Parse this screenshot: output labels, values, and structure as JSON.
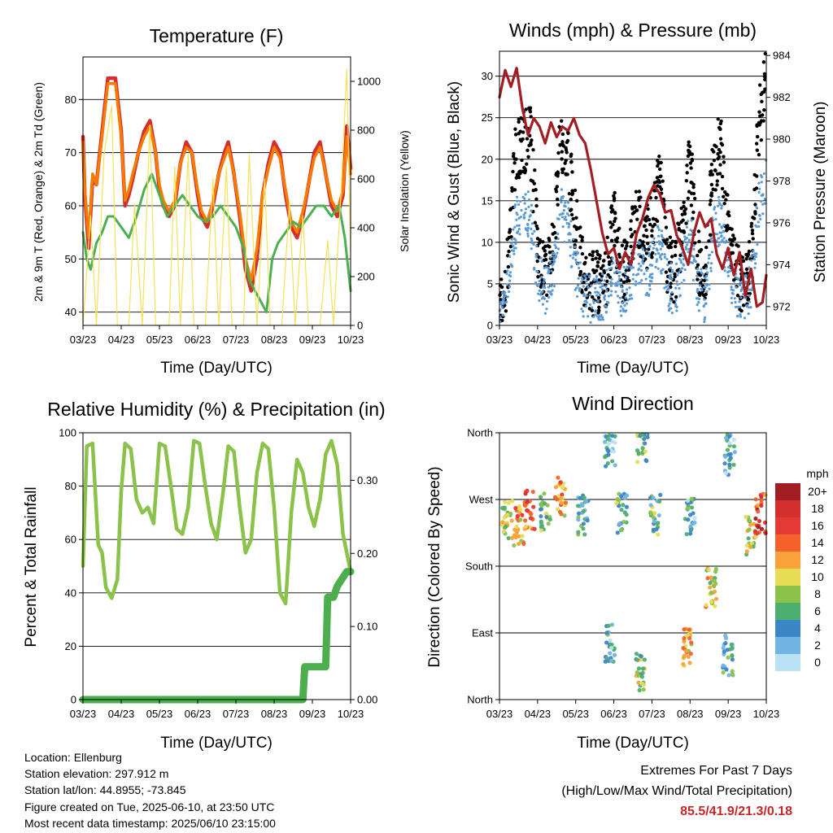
{
  "chart_data": [
    {
      "id": "temperature",
      "type": "line",
      "title": "Temperature (F)",
      "xlabel": "Time (Day/UTC)",
      "ylabel": "2m & 9m T (Red, Orange) & 2m Td (Green)",
      "ylabel_right": "Solar Insolation (Yellow)",
      "x_ticks": [
        "03/23",
        "04/23",
        "05/23",
        "06/23",
        "07/23",
        "08/23",
        "09/23",
        "10/23"
      ],
      "y_ticks": [
        40,
        50,
        60,
        70,
        80
      ],
      "y2_ticks": [
        0,
        200,
        400,
        600,
        800,
        1000
      ],
      "xlim": [
        0,
        7
      ],
      "ylim": [
        37.5,
        88
      ],
      "y2lim": [
        0,
        1100
      ],
      "grid": "horizontal",
      "series": [
        {
          "role": "t2m",
          "color": "#d32f2f",
          "axis": "left",
          "x": [
            0,
            0.05,
            0.15,
            0.25,
            0.35,
            0.5,
            0.65,
            0.85,
            1.0,
            1.1,
            1.2,
            1.3,
            1.45,
            1.6,
            1.75,
            1.9,
            2.0,
            2.1,
            2.25,
            2.4,
            2.55,
            2.7,
            2.85,
            3.0,
            3.1,
            3.25,
            3.4,
            3.55,
            3.7,
            3.8,
            3.95,
            4.1,
            4.25,
            4.4,
            4.55,
            4.7,
            4.85,
            5.0,
            5.15,
            5.3,
            5.45,
            5.6,
            5.75,
            5.9,
            6.05,
            6.2,
            6.35,
            6.5,
            6.65,
            6.8,
            6.9,
            7.0
          ],
          "values": [
            73,
            62,
            52,
            65,
            64,
            74,
            84,
            84,
            74,
            60,
            62,
            65,
            70,
            74,
            76,
            70,
            63,
            60,
            58,
            60,
            68,
            72,
            70,
            62,
            58,
            56,
            60,
            66,
            70,
            72,
            66,
            58,
            48,
            44,
            50,
            62,
            68,
            72,
            70,
            62,
            56,
            54,
            58,
            64,
            70,
            72,
            66,
            60,
            58,
            62,
            75,
            67
          ]
        },
        {
          "role": "t9m",
          "color": "#f57c00",
          "axis": "left",
          "x": [
            0,
            0.05,
            0.15,
            0.25,
            0.35,
            0.5,
            0.65,
            0.85,
            1.0,
            1.1,
            1.2,
            1.3,
            1.45,
            1.6,
            1.75,
            1.9,
            2.0,
            2.1,
            2.25,
            2.4,
            2.55,
            2.7,
            2.85,
            3.0,
            3.1,
            3.25,
            3.4,
            3.55,
            3.7,
            3.8,
            3.95,
            4.1,
            4.25,
            4.4,
            4.55,
            4.7,
            4.85,
            5.0,
            5.15,
            5.3,
            5.45,
            5.6,
            5.75,
            5.9,
            6.05,
            6.2,
            6.35,
            6.5,
            6.65,
            6.8,
            6.9,
            7.0
          ],
          "values": [
            72,
            63,
            54,
            66,
            64,
            73,
            83,
            83,
            73,
            61,
            63,
            66,
            70,
            73,
            75,
            70,
            64,
            61,
            59,
            61,
            68,
            71,
            70,
            63,
            59,
            57,
            61,
            66,
            69,
            71,
            66,
            59,
            50,
            46,
            52,
            62,
            67,
            71,
            69,
            63,
            57,
            55,
            59,
            64,
            69,
            71,
            66,
            61,
            59,
            63,
            73,
            66
          ]
        },
        {
          "role": "td2m",
          "color": "#4caf50",
          "axis": "left",
          "x": [
            0,
            0.1,
            0.2,
            0.35,
            0.5,
            0.65,
            0.8,
            1.0,
            1.2,
            1.4,
            1.6,
            1.8,
            2.0,
            2.2,
            2.4,
            2.6,
            2.8,
            3.0,
            3.2,
            3.4,
            3.6,
            3.8,
            4.0,
            4.2,
            4.35,
            4.5,
            4.65,
            4.8,
            4.95,
            5.1,
            5.3,
            5.5,
            5.7,
            5.9,
            6.1,
            6.3,
            6.5,
            6.7,
            6.85,
            7.0
          ],
          "values": [
            55,
            50,
            48,
            53,
            55,
            58,
            58,
            56,
            54,
            58,
            63,
            66,
            62,
            58,
            60,
            62,
            60,
            58,
            57,
            58,
            60,
            58,
            56,
            52,
            46,
            44,
            42,
            40,
            50,
            53,
            55,
            57,
            56,
            58,
            60,
            60,
            58,
            60,
            54,
            44
          ]
        },
        {
          "role": "solar",
          "color": "#f5e15a",
          "axis": "right",
          "x": [
            0,
            0.2,
            0.35,
            0.55,
            0.75,
            0.9,
            1.2,
            1.35,
            1.55,
            1.75,
            1.9,
            2.25,
            2.4,
            2.55,
            2.75,
            2.9,
            3.2,
            3.4,
            3.55,
            3.75,
            3.9,
            4.2,
            4.35,
            4.55,
            4.75,
            4.9,
            5.2,
            5.4,
            5.55,
            5.75,
            5.9,
            6.2,
            6.4,
            6.55,
            6.75,
            6.9,
            7.0
          ],
          "values": [
            0,
            450,
            0,
            700,
            900,
            0,
            0,
            500,
            0,
            820,
            0,
            0,
            650,
            0,
            700,
            0,
            0,
            600,
            0,
            650,
            0,
            0,
            700,
            0,
            600,
            0,
            0,
            500,
            0,
            450,
            0,
            0,
            350,
            0,
            550,
            1050,
            300
          ]
        }
      ]
    },
    {
      "id": "winds",
      "type": "scatter",
      "title": "Winds (mph) & Pressure (mb)",
      "xlabel": "Time (Day/UTC)",
      "ylabel": "Sonic Wind & Gust (Blue, Black)",
      "ylabel_right": "Station Pressure (Maroon)",
      "x_ticks": [
        "03/23",
        "04/23",
        "05/23",
        "06/23",
        "07/23",
        "08/23",
        "09/23",
        "10/23"
      ],
      "y_ticks": [
        0,
        5,
        10,
        15,
        20,
        25,
        30
      ],
      "y2_ticks": [
        972,
        974,
        976,
        978,
        980,
        982,
        984
      ],
      "xlim": [
        0,
        7
      ],
      "ylim": [
        0,
        33
      ],
      "y2lim": [
        971.1,
        984.2
      ],
      "grid": "horizontal",
      "series": [
        {
          "role": "gust",
          "color": "#000000",
          "axis": "left",
          "x": [
            0,
            0.2,
            0.4,
            0.6,
            0.8,
            1.0,
            1.2,
            1.4,
            1.6,
            1.8,
            2.0,
            2.2,
            2.4,
            2.6,
            2.8,
            3.0,
            3.2,
            3.4,
            3.6,
            3.8,
            4.0,
            4.2,
            4.4,
            4.6,
            4.8,
            5.0,
            5.2,
            5.4,
            5.6,
            5.8,
            6.0,
            6.2,
            6.4,
            6.6,
            6.8,
            7.0
          ],
          "values": [
            2,
            6,
            20,
            22,
            23,
            10,
            6,
            9,
            22,
            20,
            12,
            6,
            5,
            5,
            6,
            13,
            6,
            8,
            14,
            10,
            12,
            18,
            8,
            6,
            12,
            20,
            8,
            6,
            19,
            22,
            12,
            6,
            5,
            8,
            24,
            30
          ]
        },
        {
          "role": "wind",
          "color": "#5b9bd5",
          "axis": "left",
          "x": [
            0,
            0.2,
            0.4,
            0.6,
            0.8,
            1.0,
            1.2,
            1.4,
            1.6,
            1.8,
            2.0,
            2.2,
            2.4,
            2.6,
            2.8,
            3.0,
            3.2,
            3.4,
            3.6,
            3.8,
            4.0,
            4.2,
            4.4,
            4.6,
            4.8,
            5.0,
            5.2,
            5.4,
            5.6,
            5.8,
            6.0,
            6.2,
            6.4,
            6.6,
            6.8,
            7.0
          ],
          "values": [
            1,
            4,
            12,
            14,
            13,
            6,
            4,
            6,
            14,
            12,
            7,
            4,
            3,
            3,
            4,
            8,
            4,
            5,
            8,
            6,
            7,
            10,
            5,
            4,
            7,
            11,
            5,
            3,
            11,
            13,
            7,
            4,
            3,
            5,
            14,
            18
          ]
        },
        {
          "role": "pressure",
          "color": "#a31e22",
          "axis": "right",
          "x": [
            0,
            0.15,
            0.3,
            0.45,
            0.6,
            0.75,
            0.9,
            1.05,
            1.2,
            1.35,
            1.5,
            1.65,
            1.8,
            1.95,
            2.1,
            2.25,
            2.4,
            2.55,
            2.7,
            2.85,
            3.0,
            3.15,
            3.3,
            3.45,
            3.6,
            3.75,
            3.9,
            4.05,
            4.2,
            4.35,
            4.5,
            4.65,
            4.8,
            4.95,
            5.1,
            5.25,
            5.4,
            5.55,
            5.7,
            5.85,
            6.0,
            6.15,
            6.3,
            6.45,
            6.6,
            6.75,
            6.9,
            7.0
          ],
          "values": [
            982,
            983.3,
            982.5,
            983.4,
            981.5,
            980.2,
            981,
            980.6,
            979.8,
            980.8,
            980.1,
            980.6,
            980.4,
            981,
            980.2,
            979.8,
            978.5,
            977,
            975.5,
            974.5,
            974.8,
            973.8,
            974.6,
            974,
            975.5,
            976.2,
            977.2,
            977.8,
            977.4,
            976.5,
            976.6,
            975.4,
            974.8,
            974,
            975.5,
            976.5,
            975.8,
            976.2,
            974.5,
            973.8,
            974.8,
            973.5,
            974.6,
            972.5,
            973.8,
            972,
            972.2,
            973.5
          ]
        }
      ]
    },
    {
      "id": "humidity",
      "type": "line",
      "title": "Relative Humidity (%) & Precipitation (in)",
      "xlabel": "Time (Day/UTC)",
      "ylabel": "Percent & Total Rainfall",
      "x_ticks": [
        "03/23",
        "04/23",
        "05/23",
        "06/23",
        "07/23",
        "08/23",
        "09/23",
        "10/23"
      ],
      "y_ticks": [
        0,
        20,
        40,
        60,
        80,
        100
      ],
      "y2_ticks": [
        "0.00",
        "0.10",
        "0.20",
        "0.30"
      ],
      "xlim": [
        0,
        7
      ],
      "ylim": [
        0,
        100
      ],
      "y2lim": [
        0,
        0.365
      ],
      "grid": "horizontal",
      "series": [
        {
          "role": "rh",
          "color": "#8bc34a",
          "axis": "left",
          "x": [
            0,
            0.1,
            0.25,
            0.4,
            0.5,
            0.6,
            0.75,
            0.9,
            1.0,
            1.1,
            1.25,
            1.4,
            1.55,
            1.7,
            1.85,
            2.0,
            2.15,
            2.3,
            2.45,
            2.6,
            2.75,
            2.9,
            3.05,
            3.2,
            3.35,
            3.5,
            3.65,
            3.8,
            3.95,
            4.1,
            4.25,
            4.4,
            4.55,
            4.7,
            4.85,
            5.0,
            5.15,
            5.3,
            5.45,
            5.6,
            5.75,
            5.9,
            6.05,
            6.2,
            6.35,
            6.5,
            6.65,
            6.8,
            6.9,
            7.0
          ],
          "values": [
            50,
            95,
            96,
            58,
            55,
            42,
            38,
            45,
            78,
            96,
            94,
            75,
            70,
            72,
            66,
            96,
            95,
            80,
            64,
            62,
            72,
            97,
            96,
            80,
            66,
            60,
            76,
            95,
            93,
            72,
            55,
            60,
            85,
            96,
            94,
            72,
            40,
            36,
            70,
            90,
            85,
            72,
            65,
            75,
            92,
            97,
            88,
            62,
            55,
            48
          ]
        },
        {
          "role": "precip",
          "color": "#4cae4c",
          "axis": "right",
          "x": [
            0,
            1,
            2,
            3,
            4,
            5,
            5.75,
            5.8,
            6.2,
            6.35,
            6.4,
            6.55,
            6.65,
            6.9,
            7.0
          ],
          "values": [
            0,
            0,
            0,
            0,
            0,
            0,
            0,
            0.045,
            0.045,
            0.045,
            0.14,
            0.14,
            0.155,
            0.175,
            0.175
          ]
        }
      ]
    },
    {
      "id": "direction",
      "type": "scatter",
      "title": "Wind Direction",
      "xlabel": "Time (Day/UTC)",
      "ylabel": "Direction (Colored By Speed)",
      "x_ticks": [
        "03/23",
        "04/23",
        "05/23",
        "06/23",
        "07/23",
        "08/23",
        "09/23",
        "10/23"
      ],
      "y_ticks": [
        "North",
        "East",
        "South",
        "West",
        "North"
      ],
      "xlim": [
        0,
        7
      ],
      "ylim": [
        0,
        360
      ],
      "grid": "horizontal",
      "legend_title": "mph",
      "legend_labels": [
        "20+",
        "18",
        "16",
        "14",
        "12",
        "10",
        "8",
        "6",
        "4",
        "2",
        "0"
      ],
      "legend_colors": [
        "#a31e22",
        "#d32f2f",
        "#e53935",
        "#f4622a",
        "#f9a23b",
        "#e6dd55",
        "#8bc34a",
        "#4caf6f",
        "#3d86c6",
        "#72b4e3",
        "#b9e2f5"
      ],
      "clusters": [
        {
          "x": 0.2,
          "dir": 245,
          "speed": 8
        },
        {
          "x": 0.5,
          "dir": 235,
          "speed": 12
        },
        {
          "x": 0.8,
          "dir": 255,
          "speed": 14
        },
        {
          "x": 1.2,
          "dir": 255,
          "speed": 7
        },
        {
          "x": 1.6,
          "dir": 275,
          "speed": 12
        },
        {
          "x": 2.2,
          "dir": 250,
          "speed": 4
        },
        {
          "x": 2.9,
          "dir": 75,
          "speed": 4
        },
        {
          "x": 2.9,
          "dir": 340,
          "speed": 3
        },
        {
          "x": 3.2,
          "dir": 250,
          "speed": 6
        },
        {
          "x": 3.7,
          "dir": 40,
          "speed": 8
        },
        {
          "x": 3.75,
          "dir": 345,
          "speed": 7
        },
        {
          "x": 4.1,
          "dir": 250,
          "speed": 6
        },
        {
          "x": 4.9,
          "dir": 70,
          "speed": 11
        },
        {
          "x": 5.0,
          "dir": 250,
          "speed": 4
        },
        {
          "x": 5.55,
          "dir": 150,
          "speed": 10
        },
        {
          "x": 6.0,
          "dir": 60,
          "speed": 4
        },
        {
          "x": 6.05,
          "dir": 330,
          "speed": 3
        },
        {
          "x": 6.6,
          "dir": 220,
          "speed": 9
        },
        {
          "x": 6.85,
          "dir": 250,
          "speed": 16
        }
      ]
    }
  ],
  "footer": {
    "location": "Location: Ellenburg",
    "elevation": "Station elevation: 297.912 m",
    "latlon": "Station lat/lon: 44.8955; -73.845",
    "created": "Figure created on Tue, 2025-06-10, at 23:50 UTC",
    "recent": "Most recent data timestamp: 2025/06/10 23:15:00"
  },
  "extremes": {
    "title": "Extremes For Past 7 Days",
    "subtitle": "(High/Low/Max Wind/Total Precipitation)",
    "values": "85.5/41.9/21.3/0.18"
  }
}
